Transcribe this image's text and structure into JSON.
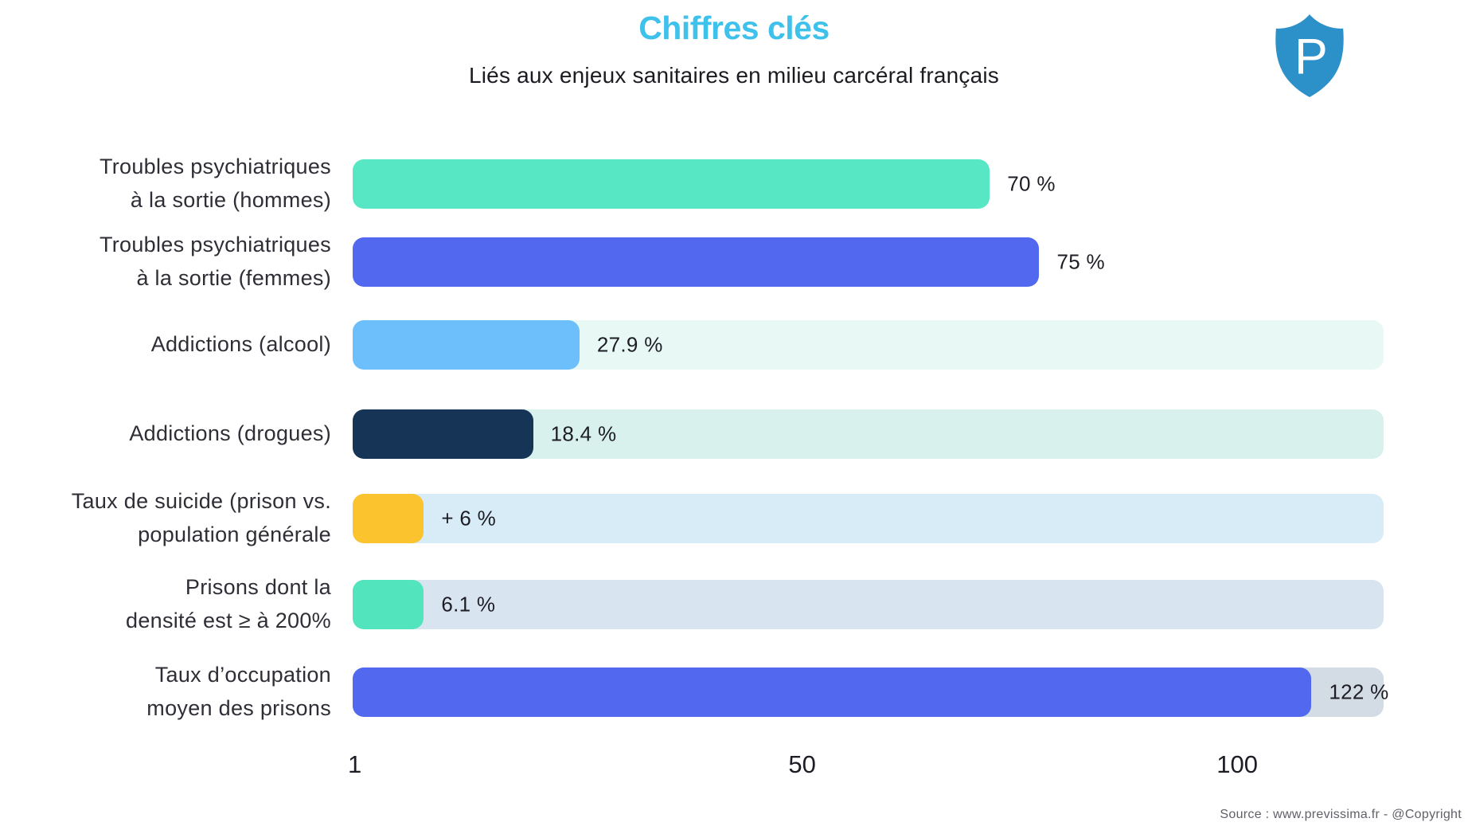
{
  "header": {
    "title": "Chiffres clés",
    "subtitle": "Liés aux enjeux sanitaires en milieu carcéral français",
    "title_color": "#3ec1ea"
  },
  "logo": {
    "letter": "P",
    "shield_color": "#2d91c9"
  },
  "chart_data": {
    "type": "bar",
    "orientation": "horizontal",
    "title": "Chiffres clés",
    "subtitle": "Liés aux enjeux sanitaires en milieu carcéral français",
    "categories": [
      "Troubles psychiatriques à la sortie (hommes)",
      "Troubles psychiatriques à la sortie (femmes)",
      "Addictions (alcool)",
      "Addictions (drogues)",
      "Taux de suicide (prison vs. population générale",
      "Prisons dont la densité est ≥ à 200%",
      "Taux d’occupation moyen des prisons"
    ],
    "values": [
      70,
      75,
      27.9,
      18.4,
      6,
      6.1,
      122
    ],
    "value_labels": [
      "70 %",
      "75 %",
      "27.9 %",
      "18.4 %",
      "+ 6 %",
      "6.1 %",
      "122 %"
    ],
    "unit": "%",
    "x_ticks": [
      "1",
      "50",
      "100"
    ],
    "xlim": [
      1,
      130
    ],
    "grid": false,
    "legend": false,
    "bar_colors": [
      "#58e7c4",
      "#5168ef",
      "#6cbffb",
      "#163456",
      "#fbc32e",
      "#52e4bd",
      "#5168ef"
    ],
    "track_colors": [
      null,
      null,
      "#e8f8f5",
      "#d8f1ec",
      "#d7ecf7",
      "#d9e4f1",
      "#d3dce4"
    ]
  },
  "rows": [
    {
      "label_lines": [
        "Troubles psychiatriques",
        "à la sortie (hommes)"
      ],
      "value": 70,
      "value_label": "70 %",
      "bar_color": "#58e7c4",
      "track_color": null,
      "bar_pct": 61.8
    },
    {
      "label_lines": [
        "Troubles psychiatriques",
        "à la sortie (femmes)"
      ],
      "value": 75,
      "value_label": "75 %",
      "bar_color": "#5168ef",
      "track_color": null,
      "bar_pct": 66.6
    },
    {
      "label_lines": [
        "Addictions (alcool)"
      ],
      "value": 27.9,
      "value_label": "27.9 %",
      "bar_color": "#6cbffb",
      "track_color": "#e8f8f5",
      "bar_pct": 22.0
    },
    {
      "label_lines": [
        "Addictions (drogues)"
      ],
      "value": 18.4,
      "value_label": "18.4 %",
      "bar_color": "#163456",
      "track_color": "#d8f1ec",
      "bar_pct": 17.5
    },
    {
      "label_lines": [
        "Taux de suicide (prison vs.",
        "population générale"
      ],
      "value": 6,
      "value_label": "+ 6 %",
      "bar_color": "#fbc32e",
      "track_color": "#d7ecf7",
      "bar_pct": 6.9
    },
    {
      "label_lines": [
        "Prisons dont la",
        "densité est ≥ à 200%"
      ],
      "value": 6.1,
      "value_label": "6.1 %",
      "bar_color": "#52e4bd",
      "track_color": "#d9e4f1",
      "bar_pct": 6.9
    },
    {
      "label_lines": [
        "Taux d’occupation",
        "moyen des prisons"
      ],
      "value": 122,
      "value_label": "122 %",
      "bar_color": "#5168ef",
      "track_color": "#d3dce4",
      "bar_pct": 93.0
    }
  ],
  "axis": {
    "ticks": [
      {
        "label": "1",
        "pos_pct": 0.2
      },
      {
        "label": "50",
        "pos_pct": 43.6
      },
      {
        "label": "100",
        "pos_pct": 85.8
      }
    ]
  },
  "footer": {
    "source": "Source : www.previssima.fr - @Copyright"
  }
}
